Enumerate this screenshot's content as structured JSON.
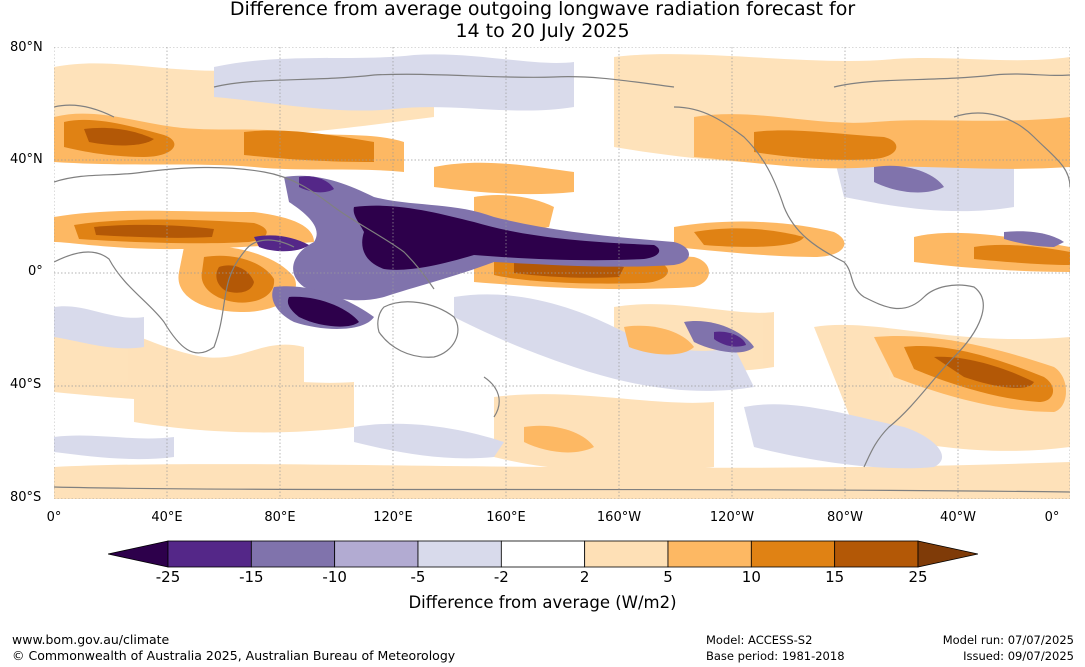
{
  "title": {
    "line1": "Difference from average outgoing longwave radiation forecast for",
    "line2": "14 to 20 July 2025"
  },
  "map": {
    "lat_labels": [
      "80°N",
      "40°N",
      "0°",
      "40°S",
      "80°S"
    ],
    "lon_labels": [
      "0°",
      "40°E",
      "80°E",
      "120°E",
      "160°E",
      "160°W",
      "120°W",
      "80°W",
      "40°W",
      "0°"
    ],
    "grid": true
  },
  "colorbar": {
    "title": "Difference from average (W/m2)",
    "tick_labels": [
      "-25",
      "-15",
      "-10",
      "-5",
      "-2",
      "2",
      "5",
      "10",
      "15",
      "25"
    ],
    "colors": [
      "#2d004b",
      "#542788",
      "#8073ac",
      "#b2abd2",
      "#d8daeb",
      "#ffffff",
      "#fee0b6",
      "#fdb863",
      "#e08214",
      "#b35806",
      "#7f3b08"
    ]
  },
  "footer": {
    "url": "www.bom.gov.au/climate",
    "copyright": "© Commonwealth of Australia 2025, Australian Bureau of Meteorology",
    "model": "Model: ACCESS-S2",
    "base_period": "Base period: 1981-2018",
    "model_run": "Model run: 07/07/2025",
    "issued": "Issued: 09/07/2025"
  }
}
